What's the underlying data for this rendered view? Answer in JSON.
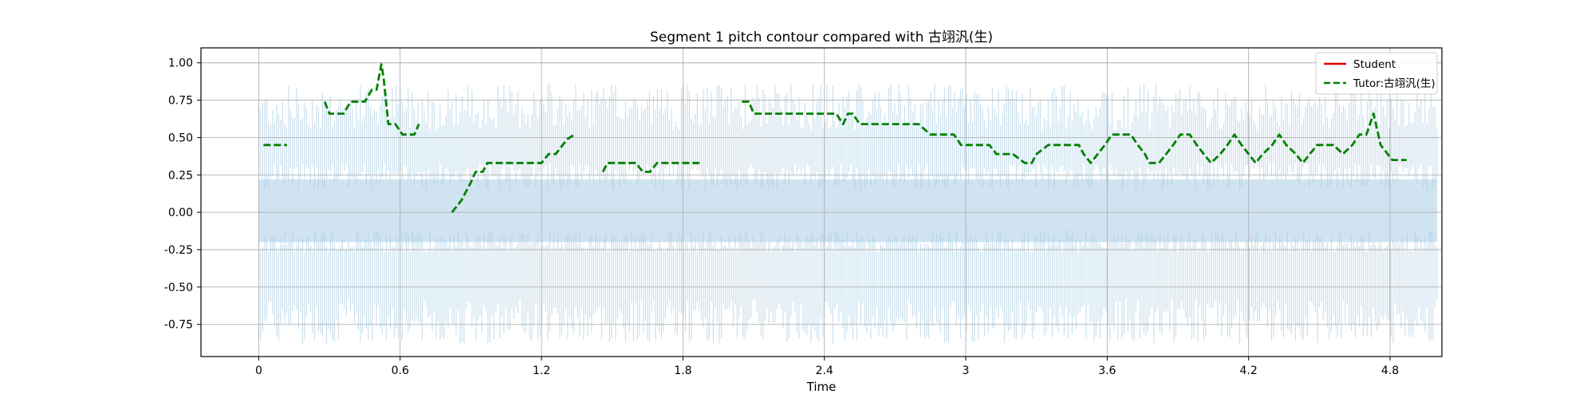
{
  "chart_data": {
    "type": "line",
    "title": "Segment 1 pitch contour compared with 古翊汎(生)",
    "xlabel": "Time",
    "ylabel": "",
    "xlim": [
      -0.245,
      5.02
    ],
    "ylim": [
      -0.965,
      1.1
    ],
    "x_ticks": [
      0,
      0.6,
      1.2,
      1.8,
      2.4,
      3.0,
      3.6,
      4.2,
      4.8
    ],
    "x_tick_labels": [
      "0",
      "0.6",
      "1.2",
      "1.8",
      "2.4",
      "3",
      "3.6",
      "4.2",
      "4.8"
    ],
    "y_ticks": [
      1.0,
      0.75,
      0.5,
      0.25,
      0.0,
      -0.25,
      -0.5,
      -0.75
    ],
    "y_tick_labels": [
      "1.00",
      "0.75",
      "0.50",
      "0.25",
      "0.00",
      "-0.25",
      "-0.50",
      "-0.75"
    ],
    "grid": true,
    "legend_position": "top-right",
    "colors": {
      "student": "#e00000",
      "tutor": "#008000",
      "waveform": "#a9cce3"
    },
    "waveform": {
      "x_range": [
        0,
        5.0
      ],
      "amplitude_range": [
        -0.88,
        0.86
      ]
    },
    "series": [
      {
        "name": "Student",
        "style": "solid",
        "x": [],
        "y": []
      },
      {
        "name": "Tutor:古翊汎(生)",
        "style": "dashed",
        "segments": [
          {
            "x": [
              0.02,
              0.04,
              0.06,
              0.08,
              0.1,
              0.12
            ],
            "y": [
              0.45,
              0.45,
              0.45,
              0.45,
              0.45,
              0.45
            ]
          },
          {
            "x": [
              0.28,
              0.3,
              0.33,
              0.36,
              0.39,
              0.42,
              0.45,
              0.48,
              0.5,
              0.52,
              0.53,
              0.55,
              0.58,
              0.61,
              0.64,
              0.66,
              0.68
            ],
            "y": [
              0.74,
              0.66,
              0.66,
              0.66,
              0.74,
              0.74,
              0.74,
              0.82,
              0.82,
              0.99,
              0.9,
              0.59,
              0.59,
              0.52,
              0.52,
              0.52,
              0.59
            ]
          },
          {
            "x": [
              0.82,
              0.84,
              0.86,
              0.88,
              0.9,
              0.92,
              0.95,
              0.97,
              1.0,
              1.05,
              1.1,
              1.15,
              1.2,
              1.23,
              1.26,
              1.29,
              1.31,
              1.34
            ],
            "y": [
              0.0,
              0.04,
              0.08,
              0.14,
              0.2,
              0.27,
              0.27,
              0.33,
              0.33,
              0.33,
              0.33,
              0.33,
              0.33,
              0.39,
              0.39,
              0.45,
              0.49,
              0.52
            ]
          },
          {
            "x": [
              1.46,
              1.48,
              1.52,
              1.56,
              1.6,
              1.63,
              1.66,
              1.69,
              1.72,
              1.76,
              1.8,
              1.84,
              1.87
            ],
            "y": [
              0.27,
              0.33,
              0.33,
              0.33,
              0.33,
              0.27,
              0.27,
              0.33,
              0.33,
              0.33,
              0.33,
              0.33,
              0.33
            ]
          },
          {
            "x": [
              2.05,
              2.08,
              2.1,
              2.15,
              2.2,
              2.25,
              2.3,
              2.35,
              2.4,
              2.45,
              2.48,
              2.5,
              2.52,
              2.55,
              2.6,
              2.65,
              2.7,
              2.75,
              2.8,
              2.85,
              2.9,
              2.95,
              2.98,
              3.0,
              3.05,
              3.1,
              3.13,
              3.15,
              3.2,
              3.25,
              3.28,
              3.3,
              3.35,
              3.4,
              3.45,
              3.48,
              3.5,
              3.53,
              3.56,
              3.59,
              3.62,
              3.66,
              3.7,
              3.73,
              3.76,
              3.78,
              3.82,
              3.85,
              3.88,
              3.91,
              3.95,
              3.98,
              4.01,
              4.04,
              4.08,
              4.11,
              4.14,
              4.17,
              4.2,
              4.23,
              4.26,
              4.3,
              4.33,
              4.36,
              4.4,
              4.43,
              4.46,
              4.49,
              4.52,
              4.56,
              4.6,
              4.64,
              4.67,
              4.7,
              4.73,
              4.76,
              4.79,
              4.81,
              4.84,
              4.87
            ],
            "y": [
              0.74,
              0.74,
              0.66,
              0.66,
              0.66,
              0.66,
              0.66,
              0.66,
              0.66,
              0.66,
              0.59,
              0.66,
              0.66,
              0.59,
              0.59,
              0.59,
              0.59,
              0.59,
              0.59,
              0.52,
              0.52,
              0.52,
              0.45,
              0.45,
              0.45,
              0.45,
              0.39,
              0.39,
              0.39,
              0.33,
              0.33,
              0.39,
              0.45,
              0.45,
              0.45,
              0.45,
              0.39,
              0.33,
              0.39,
              0.45,
              0.52,
              0.52,
              0.52,
              0.45,
              0.39,
              0.33,
              0.33,
              0.39,
              0.45,
              0.52,
              0.52,
              0.45,
              0.39,
              0.33,
              0.39,
              0.45,
              0.52,
              0.45,
              0.39,
              0.33,
              0.39,
              0.45,
              0.52,
              0.45,
              0.39,
              0.33,
              0.39,
              0.45,
              0.45,
              0.45,
              0.39,
              0.45,
              0.52,
              0.52,
              0.66,
              0.45,
              0.39,
              0.35,
              0.35,
              0.35
            ]
          }
        ]
      }
    ]
  }
}
